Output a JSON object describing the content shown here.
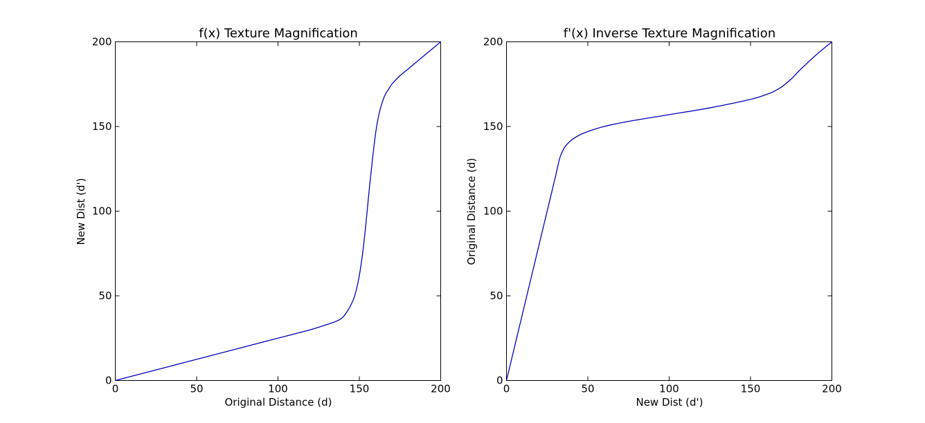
{
  "chart_data": [
    {
      "type": "line",
      "title": "f(x) Texture Magnification",
      "xlabel": "Original Distance (d)",
      "ylabel": "New Dist (d')",
      "xlim": [
        0,
        200
      ],
      "ylim": [
        0,
        200
      ],
      "xticks": [
        "0",
        "50",
        "100",
        "150",
        "200"
      ],
      "yticks": [
        "0",
        "50",
        "100",
        "150",
        "200"
      ],
      "grid": false,
      "series": [
        {
          "color": "#0000bb",
          "x": [
            0,
            50,
            100,
            120,
            130,
            138,
            142,
            146,
            148,
            150,
            152,
            154,
            156,
            158,
            160,
            162,
            164,
            166,
            168,
            170,
            175,
            180,
            190,
            200
          ],
          "y": [
            0,
            12.5,
            25,
            30,
            33,
            36,
            40,
            47,
            53,
            62,
            75,
            92,
            112,
            130,
            146,
            157,
            164,
            169,
            172,
            175,
            180,
            184,
            192,
            200
          ]
        }
      ]
    },
    {
      "type": "line",
      "title": "f'(x) Inverse Texture Magnification",
      "xlabel": "New Dist (d')",
      "ylabel": "Original Distance (d)",
      "xlim": [
        0,
        200
      ],
      "ylim": [
        0,
        200
      ],
      "xticks": [
        "0",
        "50",
        "100",
        "150",
        "200"
      ],
      "yticks": [
        "0",
        "50",
        "100",
        "150",
        "200"
      ],
      "grid": false,
      "series": [
        {
          "color": "#0000bb",
          "x": [
            0,
            10,
            20,
            25,
            30,
            33,
            36,
            40,
            45,
            50,
            60,
            75,
            100,
            125,
            150,
            160,
            165,
            170,
            175,
            180,
            190,
            200
          ],
          "y": [
            0,
            40,
            80,
            100,
            120,
            132,
            138,
            142,
            145,
            147,
            150,
            153,
            157,
            161,
            166,
            169,
            171,
            174,
            178,
            183,
            192,
            200
          ]
        }
      ]
    }
  ]
}
